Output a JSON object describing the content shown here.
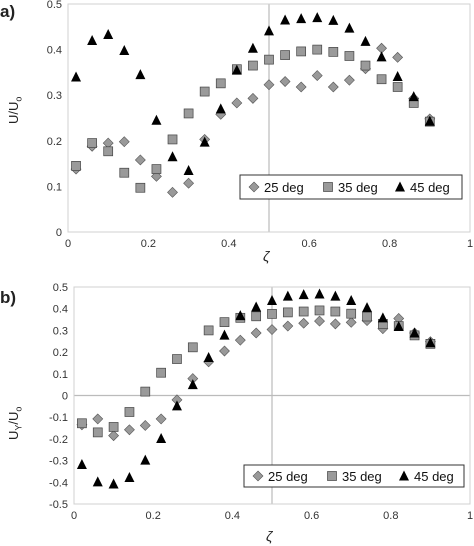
{
  "chart_data": [
    {
      "panel_label": "a)",
      "type": "scatter",
      "xlabel": "ζ",
      "ylabel": "U/U",
      "ylabel_sub": "o",
      "xlim": [
        0,
        1
      ],
      "ylim": [
        0,
        0.5
      ],
      "xticks": [
        "0",
        "0.2",
        "0.4",
        "0.6",
        "0.8",
        "1"
      ],
      "yticks": [
        "0",
        "0.1",
        "0.2",
        "0.3",
        "0.4",
        "0.5"
      ],
      "reference_lines": {
        "vertical_x": 0.5
      },
      "legend": "bottom-right, boxed, horizontal",
      "series": [
        {
          "name": "25 deg",
          "marker": "diamond",
          "color": "#999999",
          "x": [
            0.02,
            0.06,
            0.1,
            0.14,
            0.18,
            0.22,
            0.26,
            0.3,
            0.34,
            0.38,
            0.42,
            0.46,
            0.5,
            0.54,
            0.58,
            0.62,
            0.66,
            0.7,
            0.74,
            0.78,
            0.82,
            0.86,
            0.9
          ],
          "y": [
            0.138,
            0.188,
            0.195,
            0.198,
            0.158,
            0.122,
            0.087,
            0.107,
            0.203,
            0.258,
            0.283,
            0.293,
            0.323,
            0.33,
            0.318,
            0.343,
            0.318,
            0.333,
            0.358,
            0.403,
            0.383,
            0.293,
            0.248
          ]
        },
        {
          "name": "35 deg",
          "marker": "square",
          "color": "#9a9a9a",
          "x": [
            0.02,
            0.06,
            0.1,
            0.14,
            0.18,
            0.22,
            0.26,
            0.3,
            0.34,
            0.38,
            0.42,
            0.46,
            0.5,
            0.54,
            0.58,
            0.62,
            0.66,
            0.7,
            0.74,
            0.78,
            0.82,
            0.86,
            0.9
          ],
          "y": [
            0.145,
            0.195,
            0.177,
            0.13,
            0.097,
            0.138,
            0.203,
            0.26,
            0.308,
            0.326,
            0.357,
            0.365,
            0.378,
            0.388,
            0.396,
            0.4,
            0.395,
            0.386,
            0.365,
            0.335,
            0.318,
            0.283,
            0.242
          ]
        },
        {
          "name": "45 deg",
          "marker": "triangle",
          "color": "#000000",
          "x": [
            0.02,
            0.06,
            0.1,
            0.14,
            0.18,
            0.22,
            0.26,
            0.3,
            0.34,
            0.38,
            0.42,
            0.46,
            0.5,
            0.54,
            0.58,
            0.62,
            0.66,
            0.7,
            0.74,
            0.78,
            0.82,
            0.86,
            0.9
          ],
          "y": [
            0.34,
            0.42,
            0.433,
            0.398,
            0.345,
            0.245,
            0.165,
            0.135,
            0.197,
            0.27,
            0.355,
            0.403,
            0.441,
            0.465,
            0.468,
            0.47,
            0.464,
            0.447,
            0.418,
            0.384,
            0.341,
            0.297,
            0.243
          ]
        }
      ]
    },
    {
      "panel_label": "b)",
      "type": "scatter",
      "xlabel": "ζ",
      "ylabel": "U",
      "ylabel_sub1": "Y",
      "ylabel_mid": "/U",
      "ylabel_sub2": "o",
      "xlim": [
        0,
        1
      ],
      "ylim": [
        -0.5,
        0.5
      ],
      "xticks": [
        "0",
        "0.2",
        "0.4",
        "0.6",
        "0.8",
        "1"
      ],
      "yticks": [
        "-0.5",
        "-0.4",
        "-0.3",
        "-0.2",
        "-0.1",
        "0",
        "0.1",
        "0.2",
        "0.3",
        "0.4",
        "0.5"
      ],
      "reference_lines": {
        "vertical_x": 0.5,
        "horizontal_y": 0
      },
      "legend": "bottom-right, boxed, horizontal",
      "series": [
        {
          "name": "25 deg",
          "marker": "diamond",
          "color": "#999999",
          "x": [
            0.02,
            0.06,
            0.1,
            0.14,
            0.18,
            0.22,
            0.26,
            0.3,
            0.34,
            0.38,
            0.42,
            0.46,
            0.5,
            0.54,
            0.58,
            0.62,
            0.66,
            0.7,
            0.74,
            0.78,
            0.82,
            0.86,
            0.9
          ],
          "y": [
            -0.135,
            -0.108,
            -0.185,
            -0.158,
            -0.138,
            -0.108,
            -0.02,
            0.078,
            0.155,
            0.205,
            0.255,
            0.288,
            0.304,
            0.32,
            0.333,
            0.343,
            0.33,
            0.337,
            0.345,
            0.308,
            0.355,
            0.288,
            0.248
          ]
        },
        {
          "name": "35 deg",
          "marker": "square",
          "color": "#9a9a9a",
          "x": [
            0.02,
            0.06,
            0.1,
            0.14,
            0.18,
            0.22,
            0.26,
            0.3,
            0.34,
            0.38,
            0.42,
            0.46,
            0.5,
            0.54,
            0.58,
            0.62,
            0.66,
            0.7,
            0.74,
            0.78,
            0.82,
            0.86,
            0.9
          ],
          "y": [
            -0.128,
            -0.17,
            -0.145,
            -0.076,
            0.018,
            0.105,
            0.168,
            0.222,
            0.3,
            0.338,
            0.358,
            0.365,
            0.376,
            0.383,
            0.387,
            0.392,
            0.387,
            0.377,
            0.364,
            0.33,
            0.32,
            0.277,
            0.238
          ]
        },
        {
          "name": "45 deg",
          "marker": "triangle",
          "color": "#000000",
          "x": [
            0.02,
            0.06,
            0.1,
            0.14,
            0.18,
            0.22,
            0.26,
            0.3,
            0.34,
            0.38,
            0.42,
            0.46,
            0.5,
            0.54,
            0.58,
            0.62,
            0.66,
            0.7,
            0.74,
            0.78,
            0.82,
            0.86,
            0.9
          ],
          "y": [
            -0.318,
            -0.398,
            -0.408,
            -0.378,
            -0.298,
            -0.198,
            -0.048,
            0.05,
            0.175,
            0.278,
            0.368,
            0.408,
            0.438,
            0.458,
            0.465,
            0.468,
            0.458,
            0.438,
            0.405,
            0.358,
            0.318,
            0.288,
            0.243
          ]
        }
      ]
    }
  ]
}
